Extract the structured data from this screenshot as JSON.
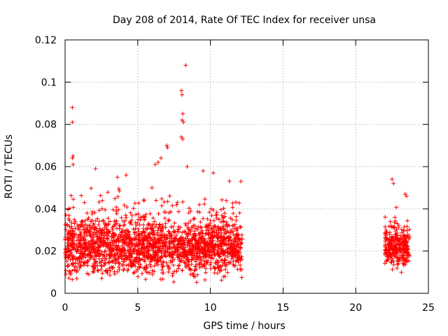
{
  "chart_data": {
    "type": "scatter",
    "title": "Day 208 of 2014, Rate Of TEC Index for receiver unsa",
    "xlabel": "GPS time / hours",
    "ylabel": "ROTI / TECUs",
    "xlim": [
      0,
      25
    ],
    "ylim": [
      0,
      0.12
    ],
    "x_ticks": [
      "0",
      "5",
      "10",
      "15",
      "20",
      "25"
    ],
    "y_ticks": [
      "0",
      "0.02",
      "0.04",
      "0.06",
      "0.08",
      "0.1",
      "0.12"
    ],
    "grid": true,
    "marker": "plus",
    "series": [
      {
        "name": "ROTI",
        "color": "#ff0000",
        "segments": [
          {
            "x_range": [
              0,
              12.2
            ],
            "y_center": 0.022,
            "y_spread": 0.014,
            "y_min": 0.005
          },
          {
            "x_range": [
              22.0,
              23.7
            ],
            "y_center": 0.022,
            "y_spread": 0.01,
            "y_min": 0.007
          }
        ],
        "outliers": [
          {
            "x": 0.5,
            "y": 0.088
          },
          {
            "x": 0.5,
            "y": 0.081
          },
          {
            "x": 0.55,
            "y": 0.065
          },
          {
            "x": 0.5,
            "y": 0.064
          },
          {
            "x": 0.55,
            "y": 0.061
          },
          {
            "x": 2.1,
            "y": 0.059
          },
          {
            "x": 6.6,
            "y": 0.064
          },
          {
            "x": 6.4,
            "y": 0.062
          },
          {
            "x": 6.2,
            "y": 0.061
          },
          {
            "x": 7.0,
            "y": 0.07
          },
          {
            "x": 7.05,
            "y": 0.069
          },
          {
            "x": 8.0,
            "y": 0.096
          },
          {
            "x": 8.05,
            "y": 0.094
          },
          {
            "x": 8.1,
            "y": 0.085
          },
          {
            "x": 8.05,
            "y": 0.082
          },
          {
            "x": 8.15,
            "y": 0.081
          },
          {
            "x": 8.0,
            "y": 0.074
          },
          {
            "x": 8.1,
            "y": 0.073
          },
          {
            "x": 8.3,
            "y": 0.108
          },
          {
            "x": 8.4,
            "y": 0.06
          },
          {
            "x": 9.5,
            "y": 0.058
          },
          {
            "x": 10.2,
            "y": 0.057
          },
          {
            "x": 22.5,
            "y": 0.054
          },
          {
            "x": 22.6,
            "y": 0.052
          },
          {
            "x": 23.4,
            "y": 0.047
          },
          {
            "x": 23.5,
            "y": 0.046
          },
          {
            "x": 12.1,
            "y": 0.053
          },
          {
            "x": 4.2,
            "y": 0.056
          },
          {
            "x": 3.6,
            "y": 0.055
          }
        ]
      }
    ]
  }
}
